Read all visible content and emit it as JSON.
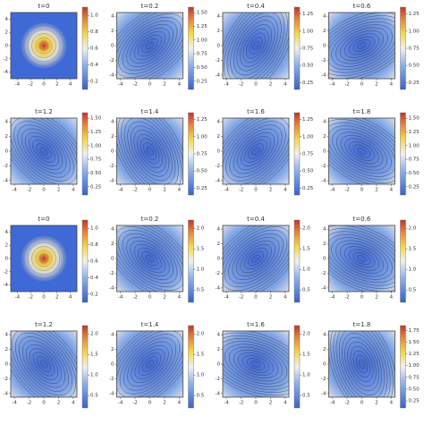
{
  "chart_data": [
    {
      "type": "contour",
      "title": "t=0",
      "xlim": [
        -5,
        5
      ],
      "ylim": [
        -5,
        5
      ],
      "xticks": [
        -4,
        -2,
        0,
        2,
        4
      ],
      "yticks": [
        -4,
        -2,
        0,
        2,
        4
      ],
      "clim": [
        0.1,
        1.1
      ],
      "cticks": [
        0.2,
        0.4,
        0.6,
        0.8,
        {
          "value": 1.0,
          "label": "1.0"
        }
      ]
    },
    {
      "type": "contour",
      "title": "t=0.2",
      "xlim": [
        -4.5,
        4.5
      ],
      "ylim": [
        -4.5,
        4.5
      ],
      "xticks": [
        -4,
        -2,
        0,
        2,
        4
      ],
      "yticks": [
        -4,
        -2,
        0,
        2,
        4
      ],
      "clim": [
        0.1,
        1.6
      ],
      "cticks": [
        0.25,
        {
          "value": 0.5,
          "label": "0.50"
        },
        0.75,
        {
          "value": 1.0,
          "label": "1.00"
        },
        1.25,
        {
          "value": 1.5,
          "label": "1.50"
        }
      ]
    },
    {
      "type": "contour",
      "title": "t=0.4",
      "xlim": [
        -4.5,
        4.5
      ],
      "ylim": [
        -4.5,
        4.5
      ],
      "xticks": [
        -4,
        -2,
        0,
        2,
        4
      ],
      "yticks": [
        -4,
        -2,
        0,
        2,
        4
      ],
      "clim": [
        0.15,
        1.35
      ],
      "cticks": [
        0.25,
        {
          "value": 0.5,
          "label": "0.50"
        },
        0.75,
        {
          "value": 1.0,
          "label": "1.00"
        },
        1.25
      ]
    },
    {
      "type": "contour",
      "title": "t=0.6",
      "xlim": [
        -4.5,
        4.5
      ],
      "ylim": [
        -4.5,
        4.5
      ],
      "xticks": [
        -4,
        -2,
        0,
        2,
        4
      ],
      "yticks": [
        -4,
        -2,
        0,
        2,
        4
      ],
      "clim": [
        0.15,
        1.35
      ],
      "cticks": [
        0.25,
        {
          "value": 0.5,
          "label": "0.50"
        },
        0.75,
        {
          "value": 1.0,
          "label": "1.00"
        },
        1.25
      ]
    },
    {
      "type": "contour",
      "title": "t=1.2",
      "xlim": [
        -4.5,
        4.5
      ],
      "ylim": [
        -4.5,
        4.5
      ],
      "xticks": [
        -4,
        -2,
        0,
        2,
        4
      ],
      "yticks": [
        -4,
        -2,
        0,
        2,
        4
      ],
      "clim": [
        0.1,
        1.6
      ],
      "cticks": [
        0.25,
        {
          "value": 0.5,
          "label": "0.50"
        },
        0.75,
        {
          "value": 1.0,
          "label": "1.00"
        },
        1.25,
        {
          "value": 1.5,
          "label": "1.50"
        }
      ]
    },
    {
      "type": "contour",
      "title": "t=1.4",
      "xlim": [
        -4.5,
        4.5
      ],
      "ylim": [
        -4.5,
        4.5
      ],
      "xticks": [
        -4,
        -2,
        0,
        2,
        4
      ],
      "yticks": [
        -4,
        -2,
        0,
        2,
        4
      ],
      "clim": [
        0.15,
        1.35
      ],
      "cticks": [
        0.25,
        {
          "value": 0.5,
          "label": "0.50"
        },
        0.75,
        {
          "value": 1.0,
          "label": "1.00"
        },
        1.25
      ]
    },
    {
      "type": "contour",
      "title": "t=1.6",
      "xlim": [
        -4.5,
        4.5
      ],
      "ylim": [
        -4.5,
        4.5
      ],
      "xticks": [
        -4,
        -2,
        0,
        2,
        4
      ],
      "yticks": [
        -4,
        -2,
        0,
        2,
        4
      ],
      "clim": [
        0.15,
        1.35
      ],
      "cticks": [
        0.25,
        {
          "value": 0.5,
          "label": "0.50"
        },
        0.75,
        {
          "value": 1.0,
          "label": "1.00"
        },
        1.25
      ]
    },
    {
      "type": "contour",
      "title": "t=1.8",
      "xlim": [
        -4.5,
        4.5
      ],
      "ylim": [
        -4.5,
        4.5
      ],
      "xticks": [
        -4,
        -2,
        0,
        2,
        4
      ],
      "yticks": [
        -4,
        -2,
        0,
        2,
        4
      ],
      "clim": [
        0.1,
        1.6
      ],
      "cticks": [
        0.25,
        {
          "value": 0.5,
          "label": "0.50"
        },
        0.75,
        {
          "value": 1.0,
          "label": "1.00"
        },
        1.25,
        {
          "value": 1.5,
          "label": "1.50"
        }
      ]
    },
    {
      "type": "contour",
      "title": "t=0",
      "xlim": [
        -5,
        5
      ],
      "ylim": [
        -5,
        5
      ],
      "xticks": [
        -4,
        -2,
        0,
        2,
        4
      ],
      "yticks": [
        -4,
        -2,
        0,
        2,
        4
      ],
      "clim": [
        0.1,
        1.1
      ],
      "cticks": [
        0.2,
        0.4,
        0.6,
        0.8,
        {
          "value": 1.0,
          "label": "1.0"
        }
      ]
    },
    {
      "type": "contour",
      "title": "t=0.2",
      "xlim": [
        -4.5,
        4.5
      ],
      "ylim": [
        -4.5,
        4.5
      ],
      "xticks": [
        -4,
        -2,
        0,
        2,
        4
      ],
      "yticks": [
        -4,
        -2,
        0,
        2,
        4
      ],
      "clim": [
        0.2,
        2.2
      ],
      "cticks": [
        0.5,
        {
          "value": 1.0,
          "label": "1.0"
        },
        1.5,
        {
          "value": 2.0,
          "label": "2.0"
        }
      ]
    },
    {
      "type": "contour",
      "title": "t=0.4",
      "xlim": [
        -4.5,
        4.5
      ],
      "ylim": [
        -4.5,
        4.5
      ],
      "xticks": [
        -4,
        -2,
        0,
        2,
        4
      ],
      "yticks": [
        -4,
        -2,
        0,
        2,
        4
      ],
      "clim": [
        0.2,
        2.2
      ],
      "cticks": [
        0.5,
        {
          "value": 1.0,
          "label": "1.0"
        },
        1.5,
        {
          "value": 2.0,
          "label": "2.0"
        }
      ]
    },
    {
      "type": "contour",
      "title": "t=0.6",
      "xlim": [
        -4.5,
        4.5
      ],
      "ylim": [
        -4.5,
        4.5
      ],
      "xticks": [
        -4,
        -2,
        0,
        2,
        4
      ],
      "yticks": [
        -4,
        -2,
        0,
        2,
        4
      ],
      "clim": [
        0.2,
        2.2
      ],
      "cticks": [
        0.5,
        {
          "value": 1.0,
          "label": "1.0"
        },
        1.5,
        {
          "value": 2.0,
          "label": "2.0"
        }
      ]
    },
    {
      "type": "contour",
      "title": "t=1.2",
      "xlim": [
        -4.5,
        4.5
      ],
      "ylim": [
        -4.5,
        4.5
      ],
      "xticks": [
        -4,
        -2,
        0,
        2,
        4
      ],
      "yticks": [
        -4,
        -2,
        0,
        2,
        4
      ],
      "clim": [
        0.2,
        2.2
      ],
      "cticks": [
        0.5,
        {
          "value": 1.0,
          "label": "1.0"
        },
        1.5,
        {
          "value": 2.0,
          "label": "2.0"
        }
      ]
    },
    {
      "type": "contour",
      "title": "t=1.4",
      "xlim": [
        -4.5,
        4.5
      ],
      "ylim": [
        -4.5,
        4.5
      ],
      "xticks": [
        -4,
        -2,
        0,
        2,
        4
      ],
      "yticks": [
        -4,
        -2,
        0,
        2,
        4
      ],
      "clim": [
        0.2,
        2.2
      ],
      "cticks": [
        0.5,
        {
          "value": 1.0,
          "label": "1.0"
        },
        1.5,
        {
          "value": 2.0,
          "label": "2.0"
        }
      ]
    },
    {
      "type": "contour",
      "title": "t=1.6",
      "xlim": [
        -4.5,
        4.5
      ],
      "ylim": [
        -4.5,
        4.5
      ],
      "xticks": [
        -4,
        -2,
        0,
        2,
        4
      ],
      "yticks": [
        -4,
        -2,
        0,
        2,
        4
      ],
      "clim": [
        0.2,
        2.2
      ],
      "cticks": [
        0.5,
        {
          "value": 1.0,
          "label": "1.0"
        },
        1.5,
        {
          "value": 2.0,
          "label": "2.0"
        }
      ]
    },
    {
      "type": "contour",
      "title": "t=1.8",
      "xlim": [
        -4.5,
        4.5
      ],
      "ylim": [
        -4.5,
        4.5
      ],
      "xticks": [
        -4,
        -2,
        0,
        2,
        4
      ],
      "yticks": [
        -4,
        -2,
        0,
        2,
        4
      ],
      "clim": [
        0.1,
        1.85
      ],
      "cticks": [
        0.25,
        {
          "value": 0.5,
          "label": "0.50"
        },
        0.75,
        {
          "value": 1.0,
          "label": "1.00"
        },
        1.25,
        {
          "value": 1.5,
          "label": "1.50"
        },
        1.75
      ]
    }
  ]
}
